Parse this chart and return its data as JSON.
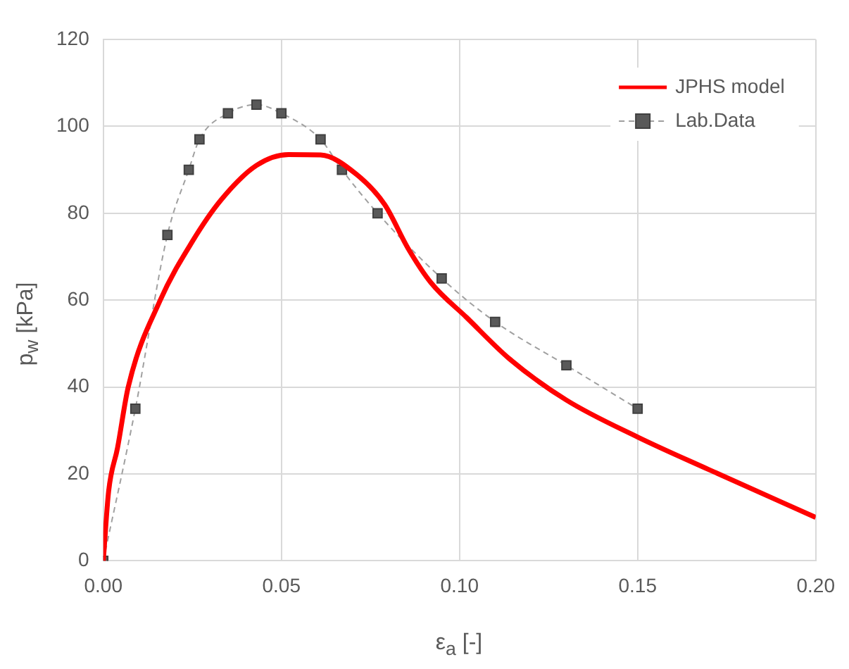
{
  "chart_data": {
    "type": "line",
    "xlabel": "ε$_{a}$ [-]",
    "ylabel": "p$_{w}$ [kPa]",
    "xlim": [
      0,
      0.2
    ],
    "xticks": [
      {
        "value": 0,
        "label": "0.00"
      },
      {
        "value": 0.05,
        "label": "0.05"
      },
      {
        "value": 0.1,
        "label": "0.10"
      },
      {
        "value": 0.15,
        "label": "0.15"
      },
      {
        "value": 0.2,
        "label": "0.20"
      }
    ],
    "ylim": [
      0,
      120
    ],
    "yticks": [
      0,
      20,
      40,
      60,
      80,
      100,
      120
    ],
    "grid": true,
    "legend": "top right",
    "series": [
      {
        "name": "JPHS model",
        "color": "#ff0000",
        "line_style": "solid",
        "marker": "none",
        "x": [
          0,
          0.0015,
          0.004,
          0.007,
          0.016,
          0.025,
          0.033,
          0.043,
          0.052,
          0.061,
          0.071,
          0.079,
          0.0855,
          0.092,
          0.102,
          0.114,
          0.13,
          0.15,
          0.17,
          0.2
        ],
        "values": [
          0,
          16,
          26,
          40,
          60,
          73.5,
          83,
          91,
          93.5,
          93.4,
          89,
          82,
          72,
          64,
          56,
          46.5,
          37,
          28.5,
          21,
          10
        ]
      },
      {
        "name": "Lab.Data",
        "color": "#595959",
        "line_style": "dashed",
        "marker": "square",
        "x": [
          0,
          0.009,
          0.018,
          0.024,
          0.027,
          0.035,
          0.043,
          0.05,
          0.061,
          0.067,
          0.077,
          0.095,
          0.11,
          0.13,
          0.15
        ],
        "values": [
          0,
          35,
          75,
          90,
          97,
          103,
          105,
          103,
          97,
          90,
          80,
          65,
          55,
          45,
          35
        ]
      }
    ]
  }
}
